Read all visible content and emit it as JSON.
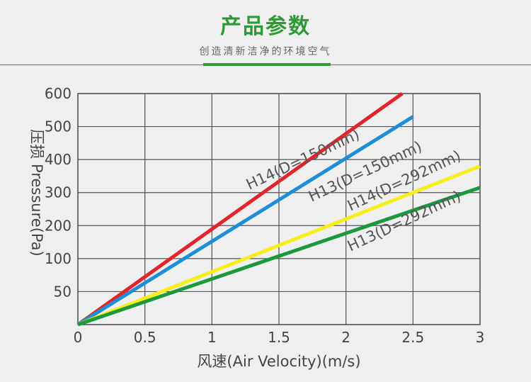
{
  "header": {
    "title": "产品参数",
    "subtitle": "创造清新洁净的环境空气"
  },
  "colors": {
    "brand": "#2f9a35",
    "grid": "#555555"
  },
  "chart_data": {
    "type": "line",
    "xlabel": "风速(Air Velocity)(m/s)",
    "ylabel": "压损 Pressure(Pa)",
    "xlim": [
      0,
      3
    ],
    "x_ticks": [
      0,
      0.5,
      1,
      1.5,
      2,
      2.5,
      3
    ],
    "x_tick_labels": [
      "0",
      "0.5",
      "1",
      "1.5",
      "2",
      "2.5",
      "3"
    ],
    "y_ticks": [
      0,
      50,
      100,
      200,
      300,
      400,
      500,
      600
    ],
    "y_tick_labels": [
      "",
      "50",
      "100",
      "200",
      "300",
      "400",
      "500",
      "600"
    ],
    "y_scale_note": "non-uniform: gridlines at 50,100,200,...,600 evenly spaced",
    "grid": true,
    "series": [
      {
        "name": "H14(D=150mm)",
        "color": "#e3242b",
        "x": [
          0,
          2.42
        ],
        "y": [
          0,
          600
        ]
      },
      {
        "name": "H13(D=150mm)",
        "color": "#1e8fd6",
        "x": [
          0,
          2.5
        ],
        "y": [
          0,
          530
        ]
      },
      {
        "name": "H14(D=292mm)",
        "color": "#f7ee1c",
        "x": [
          0,
          3
        ],
        "y": [
          0,
          380
        ]
      },
      {
        "name": "H13(D=292mm)",
        "color": "#1a9a3c",
        "x": [
          0,
          3
        ],
        "y": [
          0,
          315
        ]
      }
    ]
  }
}
